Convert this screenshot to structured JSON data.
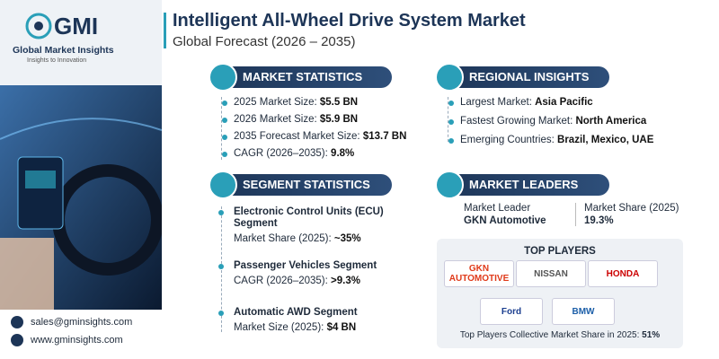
{
  "header": {
    "logo_name": "GMI",
    "logo_sub": "Global Market Insights",
    "logo_tagline": "Insights to Innovation",
    "title": "Intelligent All-Wheel Drive System Market",
    "subtitle": "Global Forecast (2026 – 2035)"
  },
  "market_statistics": {
    "heading": "MARKET STATISTICS",
    "items": [
      {
        "label": "2025 Market Size:",
        "value": "$5.5 BN"
      },
      {
        "label": "2026 Market Size:",
        "value": "$5.9 BN"
      },
      {
        "label": "2035 Forecast Market Size:",
        "value": "$13.7 BN"
      },
      {
        "label": "CAGR (2026–2035):",
        "value": "9.8%"
      }
    ]
  },
  "regional_insights": {
    "heading": "REGIONAL INSIGHTS",
    "items": [
      {
        "label": "Largest Market:",
        "value": "Asia Pacific"
      },
      {
        "label": "Fastest Growing Market:",
        "value": "North America"
      },
      {
        "label": "Emerging Countries:",
        "value": "Brazil, Mexico, UAE"
      }
    ]
  },
  "segment_statistics": {
    "heading": "SEGMENT STATISTICS",
    "items": [
      {
        "name": "Electronic Control Units (ECU) Segment",
        "metric_label": "Market Share (2025):",
        "metric_value": "~35%"
      },
      {
        "name": "Passenger Vehicles Segment",
        "metric_label": "CAGR (2026–2035):",
        "metric_value": ">9.3%"
      },
      {
        "name": "Automatic AWD Segment",
        "metric_label": "Market Size (2025):",
        "metric_value": "$4 BN"
      }
    ]
  },
  "market_leaders": {
    "heading": "MARKET LEADERS",
    "leader_label": "Market Leader",
    "leader_name": "GKN Automotive",
    "share_label": "Market Share (2025)",
    "share_value": "19.3%"
  },
  "top_players": {
    "heading": "TOP PLAYERS",
    "players": [
      "GKN AUTOMOTIVE",
      "NISSAN",
      "HONDA",
      "Ford",
      "BMW"
    ],
    "footer_label": "Top Players Collective Market Share in 2025:",
    "footer_value": "51%"
  },
  "contact": {
    "email": "sales@gminsights.com",
    "website": "www.gminsights.com"
  }
}
